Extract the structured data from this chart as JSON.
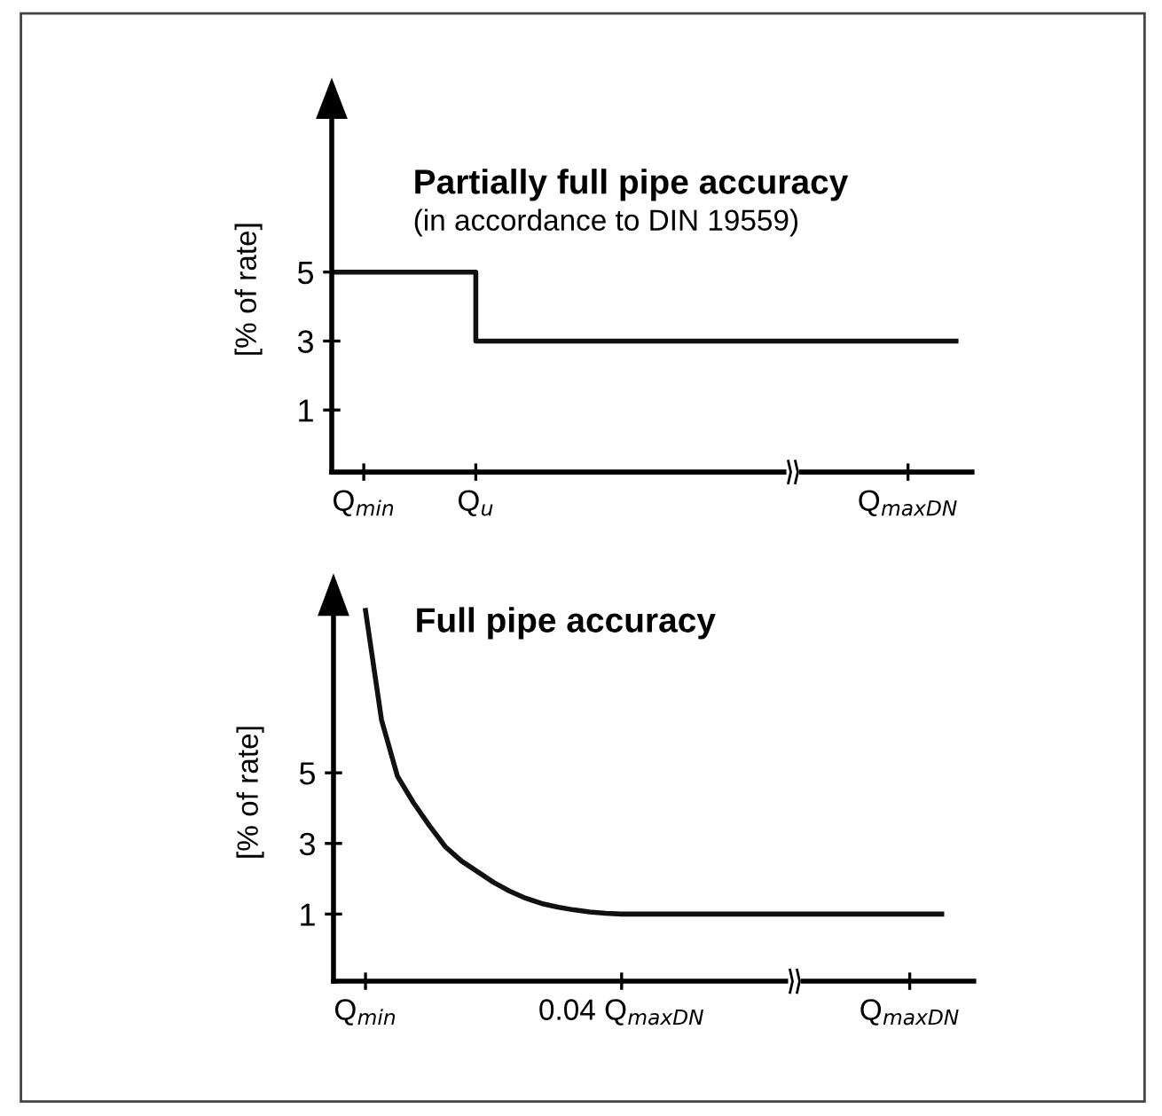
{
  "chart_data": [
    {
      "type": "step",
      "title": "Partially full pipe accuracy",
      "subtitle": "(in accordance to DIN 19559)",
      "ylabel": "[% of rate]",
      "categories": [
        null,
        null,
        "Q$_{min}$",
        null,
        null,
        null,
        null,
        null,
        null,
        "Q$_{u}$",
        null,
        null,
        null,
        null,
        null,
        null,
        null,
        null,
        null,
        null,
        null,
        null,
        null,
        null,
        null,
        null,
        null,
        null,
        null,
        null,
        null,
        null,
        null,
        null,
        null,
        null,
        "Q$_{maxDN}$",
        null,
        null,
        null
      ],
      "series": [
        {
          "color": "#111111",
          "values": [
            5,
            5,
            5,
            5,
            5,
            5,
            5,
            5,
            5,
            3,
            3,
            3,
            3,
            3,
            3,
            3,
            3,
            3,
            3,
            3,
            3,
            3,
            3,
            3,
            3,
            3,
            3,
            3,
            3,
            3,
            3,
            3,
            3,
            3,
            3,
            3,
            3,
            3,
            3,
            3
          ]
        }
      ],
      "ylim": [
        -0.8,
        9.8
      ],
      "yticks": [
        1,
        3,
        5
      ],
      "grid": false,
      "legend": false,
      "marker": "none",
      "line_style": "solid"
    },
    {
      "type": "line",
      "title": "Full pipe accuracy",
      "ylabel": "[% of rate]",
      "categories": [
        null,
        null,
        "Q$_{min}$",
        null,
        null,
        null,
        null,
        null,
        null,
        null,
        null,
        null,
        null,
        null,
        null,
        null,
        null,
        null,
        "0.04 Q$_{maxDN}$",
        null,
        null,
        null,
        null,
        null,
        null,
        null,
        null,
        null,
        null,
        null,
        null,
        null,
        null,
        null,
        null,
        null,
        "Q$_{maxDN}$",
        null,
        null,
        null
      ],
      "series": [
        {
          "color": "#111111",
          "values": [
            null,
            null,
            9.6,
            6.5,
            4.9,
            4.15,
            3.5,
            2.9,
            2.5,
            2.2,
            1.9,
            1.65,
            1.45,
            1.3,
            1.2,
            1.12,
            1.06,
            1.02,
            1,
            1,
            1,
            1,
            1,
            1,
            1,
            1,
            1,
            1,
            1,
            1,
            1,
            1,
            1,
            1,
            1,
            1,
            1,
            1,
            1,
            null
          ]
        }
      ],
      "ylim": [
        -0.9,
        9.8
      ],
      "yticks": [
        1,
        3,
        5
      ],
      "grid": false,
      "legend": false,
      "marker": "none",
      "line_style": "solid"
    }
  ]
}
